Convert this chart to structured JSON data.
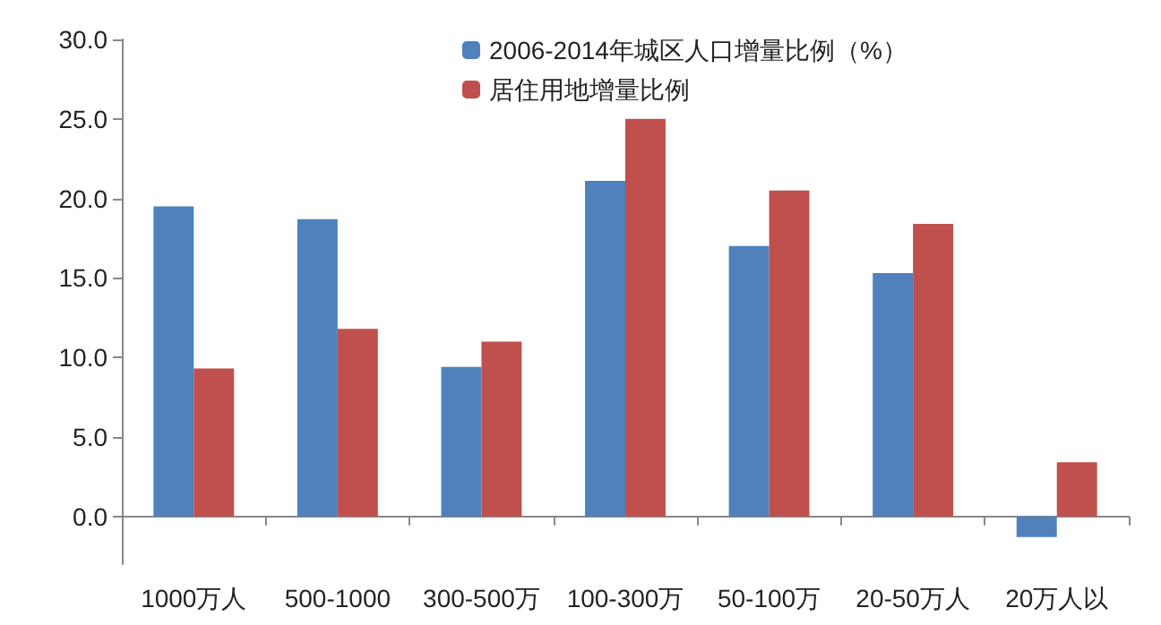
{
  "chart_data": {
    "type": "bar",
    "categories": [
      "1000万人",
      "500-1000",
      "300-500万",
      "100-300万",
      "50-100万",
      "20-50万人",
      "20万人以"
    ],
    "series": [
      {
        "name": "2006-2014年城区人口增量比例（%）",
        "color": "#4f81bd",
        "values": [
          19.5,
          18.7,
          9.4,
          21.1,
          17.0,
          15.3,
          -1.3
        ]
      },
      {
        "name": "居住用地增量比例",
        "color": "#c0504d",
        "values": [
          9.3,
          11.8,
          11.0,
          25.0,
          20.5,
          18.4,
          3.4
        ]
      }
    ],
    "ylim": [
      -3,
      30
    ],
    "yticks": [
      {
        "value": 0,
        "label": "0.0"
      },
      {
        "value": 5,
        "label": "5.0"
      },
      {
        "value": 10,
        "label": "10.0"
      },
      {
        "value": 15,
        "label": "15.0"
      },
      {
        "value": 20,
        "label": "20.0"
      },
      {
        "value": 25,
        "label": "25.0"
      },
      {
        "value": 30,
        "label": "30.0"
      }
    ],
    "legend": "top"
  }
}
